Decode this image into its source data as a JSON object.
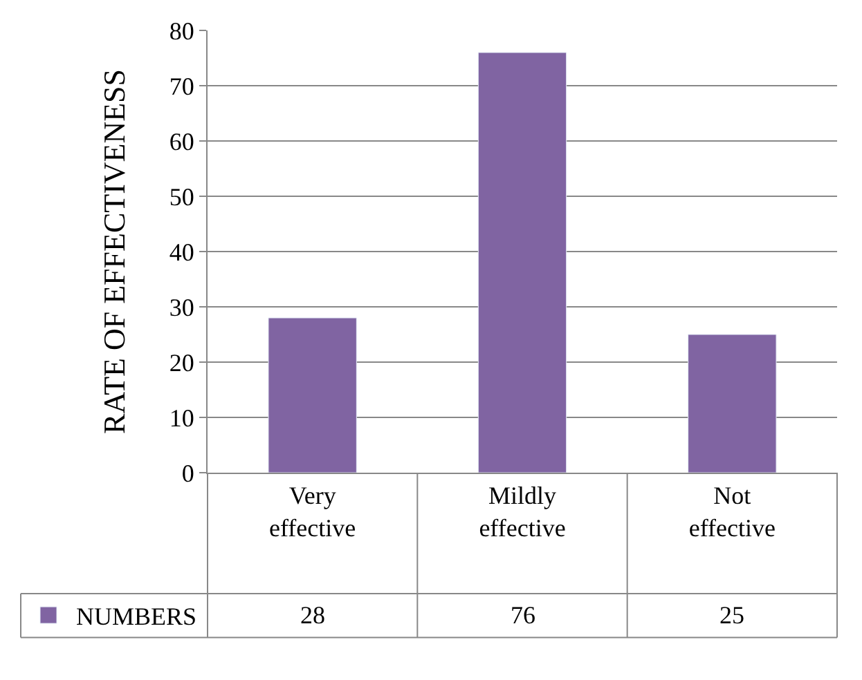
{
  "chart_data": {
    "type": "bar",
    "ylabel": "RATE OF EFFECTIVENESS",
    "categories": [
      "Very effective",
      "Mildly effective",
      "Not effective"
    ],
    "series": [
      {
        "name": "NUMBERS",
        "color": "#8064a2",
        "values": [
          28,
          76,
          25
        ]
      }
    ],
    "ylim": [
      0,
      80
    ],
    "yticks": [
      0,
      10,
      20,
      30,
      40,
      50,
      60,
      70,
      80
    ],
    "grid": "y",
    "data_labels": true,
    "legend": "bottom left"
  }
}
